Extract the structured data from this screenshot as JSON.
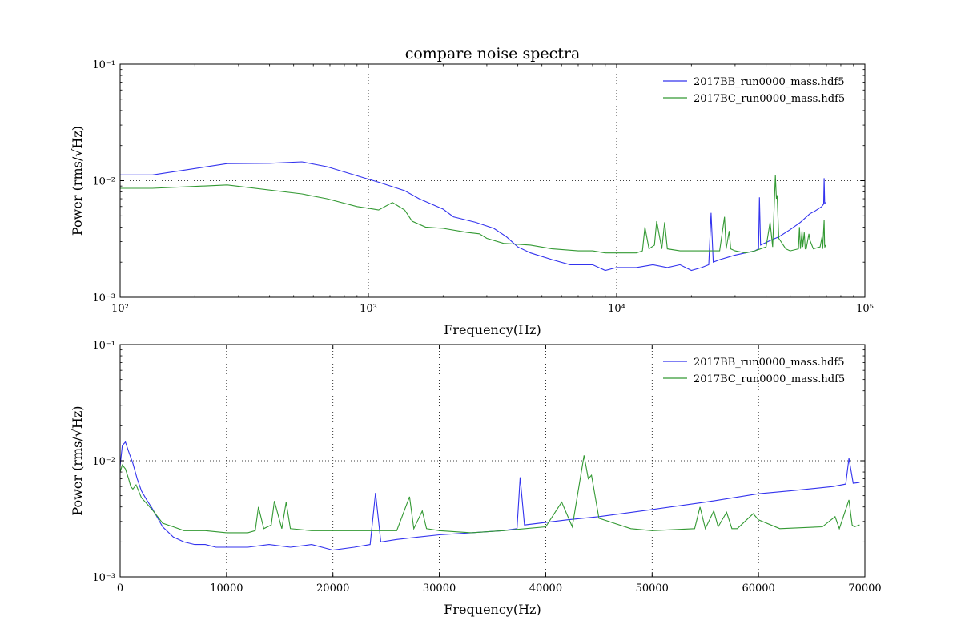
{
  "colors": {
    "bb": "#3333ee",
    "bc": "#339933"
  },
  "chart_data": [
    {
      "type": "line",
      "title": "compare noise spectra",
      "xlabel": "Frequency(Hz)",
      "ylabel": "Power (rms/√Hz)",
      "xscale": "log",
      "yscale": "log",
      "xlim": [
        100,
        100000
      ],
      "ylim": [
        0.001,
        0.1
      ],
      "grid": true,
      "legend": "top-right",
      "xticks": [
        {
          "v": 100,
          "label": "10²"
        },
        {
          "v": 1000,
          "label": "10³"
        },
        {
          "v": 10000,
          "label": "10⁴"
        },
        {
          "v": 100000,
          "label": "10⁵"
        }
      ],
      "yticks": [
        {
          "v": 0.001,
          "label": "10⁻³"
        },
        {
          "v": 0.01,
          "label": "10⁻²"
        },
        {
          "v": 0.1,
          "label": "10⁻¹"
        }
      ],
      "series": [
        {
          "name": "2017BB_run0000_mass.hdf5",
          "color": "#3333ee",
          "x": [
            100,
            135,
            270,
            400,
            540,
            680,
            1000,
            1100,
            1400,
            1600,
            2000,
            2200,
            2700,
            3200,
            3600,
            4000,
            4500,
            5500,
            6500,
            8000,
            9000,
            10000,
            12000,
            14000,
            16000,
            18000,
            20000,
            22000,
            23500,
            24000,
            24500,
            26000,
            28000,
            30000,
            33000,
            36000,
            37300,
            37600,
            38000,
            42000,
            45000,
            50000,
            55000,
            60000,
            63000,
            67000,
            68200,
            68500,
            68900,
            69500
          ],
          "y": [
            0.0112,
            0.0112,
            0.014,
            0.0141,
            0.0145,
            0.0132,
            0.0103,
            0.0097,
            0.0082,
            0.007,
            0.0057,
            0.0049,
            0.0044,
            0.0039,
            0.0033,
            0.0027,
            0.0024,
            0.0021,
            0.0019,
            0.0019,
            0.0017,
            0.0018,
            0.0018,
            0.0019,
            0.0018,
            0.0019,
            0.0017,
            0.0018,
            0.0019,
            0.0053,
            0.002,
            0.0021,
            0.0022,
            0.0023,
            0.0024,
            0.0025,
            0.0026,
            0.0072,
            0.0028,
            0.0031,
            0.0033,
            0.0038,
            0.0044,
            0.0052,
            0.0055,
            0.006,
            0.0063,
            0.0105,
            0.0064,
            0.0065
          ]
        },
        {
          "name": "2017BC_run0000_mass.hdf5",
          "color": "#339933",
          "x": [
            100,
            135,
            270,
            540,
            680,
            900,
            1000,
            1100,
            1250,
            1400,
            1500,
            1700,
            2000,
            2500,
            2800,
            3000,
            3500,
            4500,
            5500,
            7000,
            8000,
            9000,
            10000,
            12000,
            12700,
            13000,
            13500,
            14200,
            14500,
            15200,
            15600,
            16000,
            18000,
            20000,
            22000,
            24000,
            26000,
            27200,
            27600,
            28400,
            28800,
            30000,
            33000,
            36000,
            40000,
            41500,
            42500,
            43600,
            44000,
            44300,
            45000,
            48000,
            50000,
            54000,
            54500,
            55000,
            55800,
            56200,
            57000,
            57500,
            58000,
            59500,
            60000,
            62000,
            66000,
            67200,
            67600,
            68500,
            68800,
            69000,
            69500
          ],
          "y": [
            0.0086,
            0.0086,
            0.0092,
            0.0077,
            0.007,
            0.006,
            0.0058,
            0.0056,
            0.0065,
            0.0056,
            0.0045,
            0.004,
            0.0039,
            0.0036,
            0.0035,
            0.0032,
            0.0029,
            0.0028,
            0.0026,
            0.0025,
            0.0025,
            0.0024,
            0.0024,
            0.0024,
            0.0025,
            0.004,
            0.0026,
            0.0028,
            0.0045,
            0.0026,
            0.0044,
            0.0026,
            0.0025,
            0.0025,
            0.0025,
            0.0025,
            0.0025,
            0.0049,
            0.0026,
            0.0037,
            0.0026,
            0.0025,
            0.0024,
            0.0025,
            0.0027,
            0.0044,
            0.0027,
            0.0111,
            0.007,
            0.0075,
            0.0032,
            0.0026,
            0.0025,
            0.0026,
            0.004,
            0.0026,
            0.0037,
            0.0027,
            0.0036,
            0.0026,
            0.0026,
            0.0035,
            0.0031,
            0.0026,
            0.0027,
            0.0033,
            0.0026,
            0.0046,
            0.0028,
            0.0027,
            0.0028
          ]
        }
      ]
    },
    {
      "type": "line",
      "title": "",
      "xlabel": "Frequency(Hz)",
      "ylabel": "Power (rms/√Hz)",
      "xscale": "linear",
      "yscale": "log",
      "xlim": [
        0,
        70000
      ],
      "ylim": [
        0.001,
        0.1
      ],
      "grid": true,
      "legend": "top-right",
      "xticks": [
        {
          "v": 0,
          "label": "0"
        },
        {
          "v": 10000,
          "label": "10000"
        },
        {
          "v": 20000,
          "label": "20000"
        },
        {
          "v": 30000,
          "label": "30000"
        },
        {
          "v": 40000,
          "label": "40000"
        },
        {
          "v": 50000,
          "label": "50000"
        },
        {
          "v": 60000,
          "label": "60000"
        },
        {
          "v": 70000,
          "label": "70000"
        }
      ],
      "yticks": [
        {
          "v": 0.001,
          "label": "10⁻³"
        },
        {
          "v": 0.01,
          "label": "10⁻²"
        },
        {
          "v": 0.1,
          "label": "10⁻¹"
        }
      ],
      "series": [
        {
          "name": "2017BB_run0000_mass.hdf5",
          "color": "#3333ee",
          "x": [
            0,
            200,
            500,
            800,
            1200,
            1600,
            2000,
            2500,
            3000,
            4000,
            5000,
            6000,
            7000,
            8000,
            9000,
            10000,
            12000,
            14000,
            16000,
            18000,
            20000,
            22000,
            23500,
            24000,
            24500,
            26000,
            28000,
            30000,
            33000,
            36000,
            37300,
            37600,
            38000,
            42000,
            45000,
            50000,
            55000,
            60000,
            63000,
            67000,
            68200,
            68500,
            68900,
            69500
          ],
          "y": [
            0.009,
            0.0135,
            0.0145,
            0.012,
            0.0095,
            0.007,
            0.0055,
            0.0046,
            0.0039,
            0.0027,
            0.0022,
            0.002,
            0.0019,
            0.0019,
            0.0018,
            0.0018,
            0.0018,
            0.0019,
            0.0018,
            0.0019,
            0.0017,
            0.0018,
            0.0019,
            0.0053,
            0.002,
            0.0021,
            0.0022,
            0.0023,
            0.0024,
            0.0025,
            0.0026,
            0.0072,
            0.0028,
            0.0031,
            0.0033,
            0.0038,
            0.0044,
            0.0052,
            0.0055,
            0.006,
            0.0063,
            0.0105,
            0.0064,
            0.0065
          ]
        },
        {
          "name": "2017BC_run0000_mass.hdf5",
          "color": "#339933",
          "x": [
            0,
            200,
            500,
            800,
            1000,
            1200,
            1500,
            2000,
            3000,
            4000,
            5000,
            6000,
            8000,
            10000,
            12000,
            12700,
            13000,
            13500,
            14200,
            14500,
            15200,
            15600,
            16000,
            18000,
            20000,
            22000,
            24000,
            26000,
            27200,
            27600,
            28400,
            28800,
            30000,
            33000,
            36000,
            40000,
            41500,
            42500,
            43600,
            44000,
            44300,
            45000,
            48000,
            50000,
            54000,
            54500,
            55000,
            55800,
            56200,
            57000,
            57500,
            58000,
            59500,
            60000,
            62000,
            66000,
            67200,
            67600,
            68500,
            68800,
            69000,
            69500
          ],
          "y": [
            0.008,
            0.0092,
            0.0085,
            0.007,
            0.006,
            0.0057,
            0.0062,
            0.0048,
            0.0038,
            0.0029,
            0.0027,
            0.0025,
            0.0025,
            0.0024,
            0.0024,
            0.0025,
            0.004,
            0.0026,
            0.0028,
            0.0045,
            0.0026,
            0.0044,
            0.0026,
            0.0025,
            0.0025,
            0.0025,
            0.0025,
            0.0025,
            0.0049,
            0.0026,
            0.0037,
            0.0026,
            0.0025,
            0.0024,
            0.0025,
            0.0027,
            0.0044,
            0.0027,
            0.0111,
            0.007,
            0.0075,
            0.0032,
            0.0026,
            0.0025,
            0.0026,
            0.004,
            0.0026,
            0.0037,
            0.0027,
            0.0036,
            0.0026,
            0.0026,
            0.0035,
            0.0031,
            0.0026,
            0.0027,
            0.0033,
            0.0026,
            0.0046,
            0.0028,
            0.0027,
            0.0028
          ]
        }
      ]
    }
  ]
}
